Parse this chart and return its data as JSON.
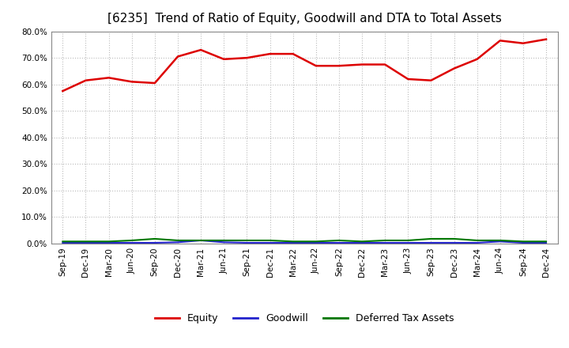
{
  "title": "[6235]  Trend of Ratio of Equity, Goodwill and DTA to Total Assets",
  "x_labels": [
    "Sep-19",
    "Dec-19",
    "Mar-20",
    "Jun-20",
    "Sep-20",
    "Dec-20",
    "Mar-21",
    "Jun-21",
    "Sep-21",
    "Dec-21",
    "Mar-22",
    "Jun-22",
    "Sep-22",
    "Dec-22",
    "Mar-23",
    "Jun-23",
    "Sep-23",
    "Dec-23",
    "Mar-24",
    "Jun-24",
    "Sep-24",
    "Dec-24"
  ],
  "equity": [
    57.5,
    61.5,
    62.5,
    61.0,
    60.5,
    70.5,
    73.0,
    69.5,
    70.0,
    71.5,
    71.5,
    67.0,
    67.0,
    67.5,
    67.5,
    62.0,
    61.5,
    66.0,
    69.5,
    76.5,
    75.5,
    77.0
  ],
  "goodwill": [
    0.3,
    0.3,
    0.3,
    0.3,
    0.3,
    0.5,
    1.2,
    0.5,
    0.3,
    0.3,
    0.3,
    0.3,
    0.3,
    0.3,
    0.3,
    0.3,
    0.3,
    0.3,
    0.3,
    0.8,
    0.3,
    0.3
  ],
  "dta": [
    0.8,
    0.8,
    0.8,
    1.2,
    1.8,
    1.2,
    1.2,
    1.2,
    1.2,
    1.2,
    0.8,
    0.8,
    1.2,
    0.8,
    1.2,
    1.2,
    1.8,
    1.8,
    1.2,
    1.2,
    0.8,
    0.8
  ],
  "ylim": [
    0,
    80
  ],
  "yticks": [
    0,
    10,
    20,
    30,
    40,
    50,
    60,
    70,
    80
  ],
  "equity_color": "#dd0000",
  "goodwill_color": "#2222cc",
  "dta_color": "#007700",
  "bg_color": "#ffffff",
  "plot_bg_color": "#ffffff",
  "grid_color": "#bbbbbb",
  "title_fontsize": 11,
  "tick_fontsize": 7.5,
  "legend_labels": [
    "Equity",
    "Goodwill",
    "Deferred Tax Assets"
  ]
}
